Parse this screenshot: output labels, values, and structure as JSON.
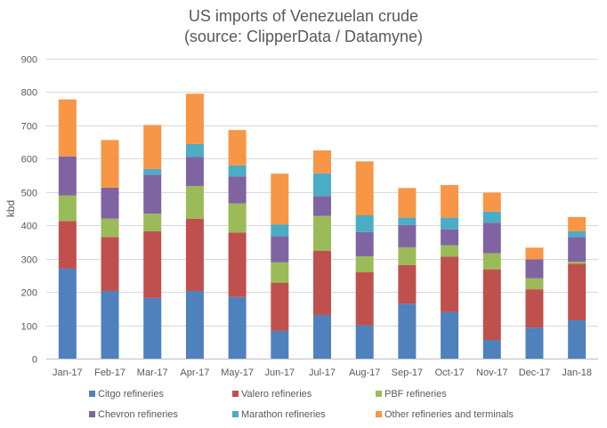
{
  "chart_data": {
    "type": "bar",
    "stacked": true,
    "title": "US imports of Venezuelan crude",
    "subtitle": "(source: ClipperData / Datamyne)",
    "xlabel": "",
    "ylabel": "kbd",
    "ylim": [
      0,
      900
    ],
    "yticks": [
      0,
      100,
      200,
      300,
      400,
      500,
      600,
      700,
      800,
      900
    ],
    "grid": true,
    "legend_position": "bottom",
    "categories": [
      "Jan-17",
      "Feb-17",
      "Mar-17",
      "Apr-17",
      "May-17",
      "Jun-17",
      "Jul-17",
      "Aug-17",
      "Sep-17",
      "Oct-17",
      "Nov-17",
      "Dec-17",
      "Jan-18"
    ],
    "series": [
      {
        "name": "Citgo refineries",
        "color": "#4f81bd",
        "values": [
          270,
          203,
          182,
          203,
          185,
          83,
          131,
          100,
          165,
          140,
          56,
          93,
          115
        ]
      },
      {
        "name": "Valero refineries",
        "color": "#c0504d",
        "values": [
          143,
          162,
          200,
          217,
          193,
          145,
          193,
          159,
          116,
          166,
          212,
          115,
          170
        ]
      },
      {
        "name": "PBF refineries",
        "color": "#9bbb59",
        "values": [
          77,
          55,
          53,
          98,
          88,
          61,
          104,
          48,
          53,
          34,
          48,
          33,
          6
        ]
      },
      {
        "name": "Chevron refineries",
        "color": "#8064a2",
        "values": [
          117,
          93,
          117,
          87,
          81,
          78,
          60,
          73,
          67,
          48,
          92,
          57,
          74
        ]
      },
      {
        "name": "Marathon refineries",
        "color": "#4bacc6",
        "values": [
          0,
          0,
          17,
          39,
          33,
          36,
          68,
          50,
          22,
          35,
          33,
          0,
          17
        ]
      },
      {
        "name": "Other refineries and terminals",
        "color": "#f79646",
        "values": [
          171,
          143,
          132,
          151,
          106,
          152,
          69,
          162,
          89,
          98,
          57,
          35,
          43
        ]
      }
    ]
  }
}
